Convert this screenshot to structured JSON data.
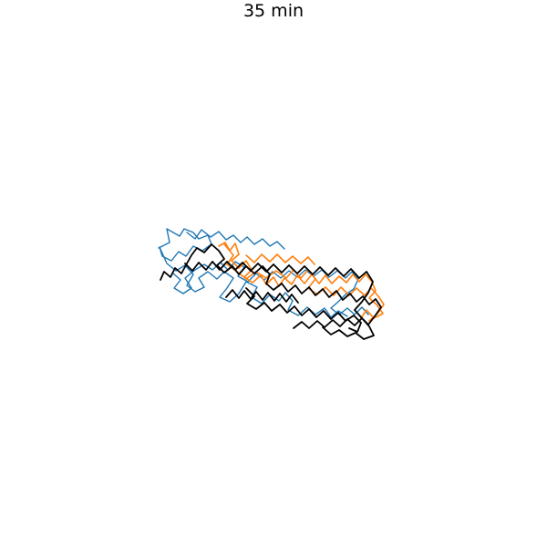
{
  "figure": {
    "title": "35 min"
  },
  "colors": {
    "chain_a": "#1f77b4",
    "chain_b": "#ff7f0e",
    "chain_c": "#000000"
  }
}
